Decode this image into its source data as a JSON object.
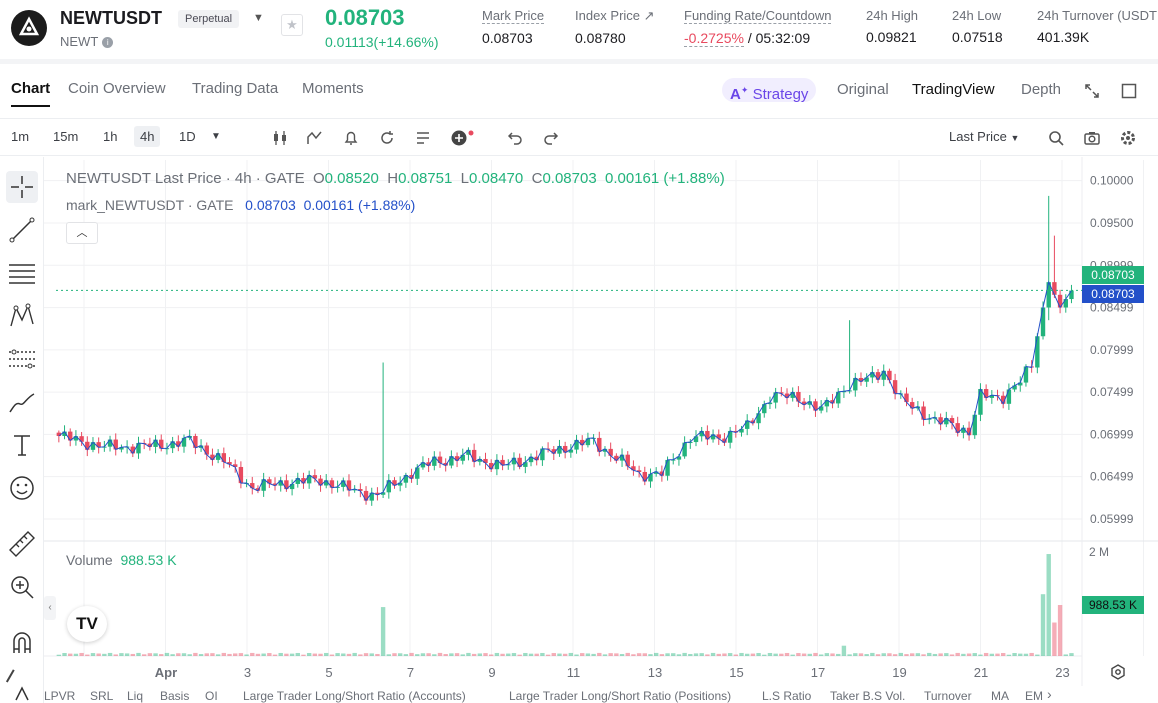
{
  "header": {
    "symbol": "NEWTUSDT",
    "type_badge": "Perpetual",
    "base": "NEWT",
    "last_price": "0.08703",
    "change": "0.01113(+14.66%)",
    "stats": [
      {
        "label": "Mark Price",
        "value": "0.08703"
      },
      {
        "label": "Index Price ↗",
        "value": "0.08780"
      },
      {
        "label": "Funding Rate/Countdown",
        "value_neg": "-0.2725%",
        "value": " / 05:32:09"
      },
      {
        "label": "24h High",
        "value": "0.09821"
      },
      {
        "label": "24h Low",
        "value": "0.07518"
      },
      {
        "label": "24h Turnover (USDT",
        "value": "401.39K"
      }
    ]
  },
  "tabs": [
    "Chart",
    "Coin Overview",
    "Trading Data",
    "Moments"
  ],
  "views": {
    "strategy": "Strategy",
    "items": [
      "Original",
      "TradingView",
      "Depth"
    ]
  },
  "toolbar": {
    "intervals": [
      "1m",
      "15m",
      "1h",
      "4h",
      "1D"
    ],
    "selected_interval": "4h",
    "price_type": "Last Price"
  },
  "legend": {
    "title": "NEWTUSDT Last Price · 4h · GATE",
    "o_lbl": "O",
    "o": "0.08520",
    "h_lbl": "H",
    "h": "0.08751",
    "l_lbl": "L",
    "l": "0.08470",
    "c_lbl": "C",
    "c": "0.08703",
    "chg": "0.00161 (+1.88%)",
    "mark_title": "mark_NEWTUSDT · GATE",
    "mark_value": "0.08703",
    "mark_chg": "0.00161 (+1.88%)"
  },
  "volume": {
    "label": "Volume",
    "value": "988.53 K",
    "tag": "988.53 K",
    "axis_max": "2 M"
  },
  "price_tags": {
    "last": "0.08703",
    "mark": "0.08703"
  },
  "colors": {
    "up": "#22b37c",
    "down": "#e84a5f",
    "mark_line": "#2350c9",
    "accent": "#6a46e8"
  },
  "chart_data": {
    "type": "candlestick",
    "title": "NEWTUSDT Last Price · 4h · GATE",
    "y_ticks": [
      "0.10000",
      "0.09500",
      "0.08999",
      "0.08499",
      "0.07999",
      "0.07499",
      "0.06999",
      "0.06499",
      "0.05999"
    ],
    "ylim": [
      0.0575,
      0.1015
    ],
    "x_ticks": [
      "Apr",
      "3",
      "5",
      "7",
      "9",
      "11",
      "13",
      "15",
      "17",
      "19",
      "21",
      "23"
    ],
    "grid": true,
    "anchors": [
      {
        "i": 0,
        "v": 0.0698
      },
      {
        "i": 8,
        "v": 0.0685
      },
      {
        "i": 16,
        "v": 0.0686
      },
      {
        "i": 23,
        "v": 0.0692
      },
      {
        "i": 29,
        "v": 0.0668
      },
      {
        "i": 34,
        "v": 0.0637
      },
      {
        "i": 40,
        "v": 0.0643
      },
      {
        "i": 46,
        "v": 0.0646
      },
      {
        "i": 52,
        "v": 0.0633
      },
      {
        "i": 56,
        "v": 0.0628
      },
      {
        "i": 62,
        "v": 0.0655
      },
      {
        "i": 66,
        "v": 0.0668
      },
      {
        "i": 72,
        "v": 0.0674
      },
      {
        "i": 78,
        "v": 0.0662
      },
      {
        "i": 83,
        "v": 0.0672
      },
      {
        "i": 88,
        "v": 0.0683
      },
      {
        "i": 94,
        "v": 0.0692
      },
      {
        "i": 98,
        "v": 0.0672
      },
      {
        "i": 102,
        "v": 0.0653
      },
      {
        "i": 106,
        "v": 0.0653
      },
      {
        "i": 111,
        "v": 0.0697
      },
      {
        "i": 116,
        "v": 0.0696
      },
      {
        "i": 121,
        "v": 0.0708
      },
      {
        "i": 125,
        "v": 0.0745
      },
      {
        "i": 130,
        "v": 0.0744
      },
      {
        "i": 134,
        "v": 0.0728
      },
      {
        "i": 138,
        "v": 0.0755
      },
      {
        "i": 142,
        "v": 0.0765
      },
      {
        "i": 145,
        "v": 0.0776
      },
      {
        "i": 148,
        "v": 0.074
      },
      {
        "i": 151,
        "v": 0.073
      },
      {
        "i": 154,
        "v": 0.0715
      },
      {
        "i": 157,
        "v": 0.0712
      },
      {
        "i": 160,
        "v": 0.0703
      },
      {
        "i": 162,
        "v": 0.0745
      },
      {
        "i": 166,
        "v": 0.0745
      },
      {
        "i": 169,
        "v": 0.0762
      },
      {
        "i": 171,
        "v": 0.0782
      },
      {
        "i": 173,
        "v": 0.085
      },
      {
        "i": 174,
        "v": 0.088
      },
      {
        "i": 176,
        "v": 0.085
      },
      {
        "i": 178,
        "v": 0.087
      }
    ],
    "spikes": [
      {
        "i": 57,
        "high": 0.0785
      },
      {
        "i": 139,
        "high": 0.0835
      },
      {
        "i": 174,
        "high": 0.0982,
        "low": 0.0835
      },
      {
        "i": 175,
        "high": 0.0935
      }
    ],
    "volume_axis": "2 M",
    "volume_spikes": [
      {
        "i": 57,
        "v": 0.95
      },
      {
        "i": 138,
        "v": 0.2
      },
      {
        "i": 173,
        "v": 1.2
      },
      {
        "i": 174,
        "v": 1.98
      },
      {
        "i": 175,
        "v": 0.65
      },
      {
        "i": 176,
        "v": 0.99
      }
    ]
  },
  "indicators": [
    "LPVR",
    "SRL",
    "Liq",
    "Basis",
    "OI",
    "Large Trader Long/Short Ratio (Accounts)",
    "Large Trader Long/Short Ratio (Positions)",
    "L.S Ratio",
    "Taker B.S Vol.",
    "Turnover",
    "MA",
    "EM"
  ]
}
